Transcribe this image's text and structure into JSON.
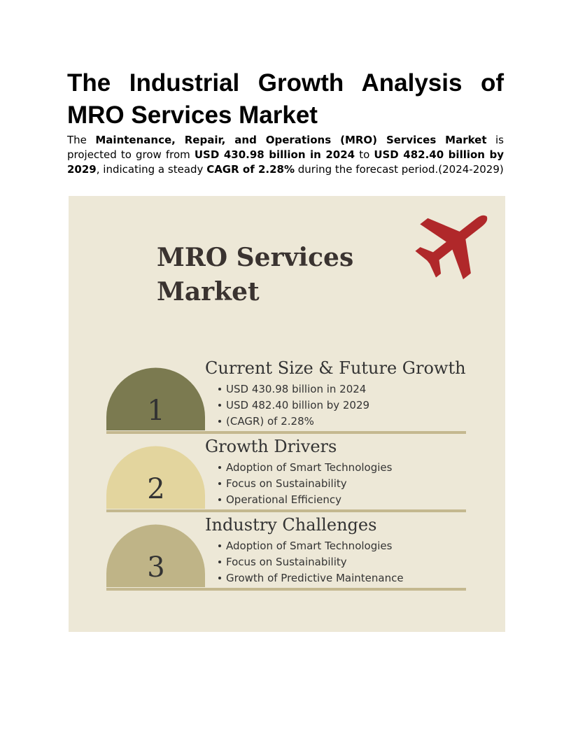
{
  "header": {
    "title_lines": [
      "The Industrial Growth Analysis of",
      "MRO Services Market"
    ]
  },
  "intro": [
    {
      "text": "The ",
      "bold": false
    },
    {
      "text": "Maintenance, Repair, and Operations (MRO) Services Market",
      "bold": true
    },
    {
      "text": " is projected to grow from ",
      "bold": false
    },
    {
      "text": "USD 430.98 billion in 2024",
      "bold": true
    },
    {
      "text": " to ",
      "bold": false
    },
    {
      "text": "USD 482.40 billion by 2029",
      "bold": true
    },
    {
      "text": ", indicating a steady ",
      "bold": false
    },
    {
      "text": "CAGR of 2.28%",
      "bold": true
    },
    {
      "text": " during the forecast period.(2024-2029)",
      "bold": false
    }
  ],
  "infographic": {
    "title_lines": [
      "MRO Services",
      "Market"
    ],
    "sections": [
      {
        "number": "1",
        "heading": "Current Size & Future Growth",
        "color": "#7b7a50",
        "items": [
          "USD 430.98 billion in 2024",
          "USD 482.40 billion by 2029",
          " (CAGR) of  2.28%"
        ]
      },
      {
        "number": "2",
        "heading": "Growth Drivers",
        "color": "#e3d59e",
        "items": [
          "Adoption of Smart Technologies",
          "Focus on Sustainability",
          "Operational Efficiency"
        ]
      },
      {
        "number": "3",
        "heading": "Industry Challenges",
        "color": "#bfb487",
        "items": [
          "Adoption of Smart Technologies",
          "Focus on Sustainability",
          "Growth of Predictive Maintenance"
        ]
      }
    ]
  }
}
